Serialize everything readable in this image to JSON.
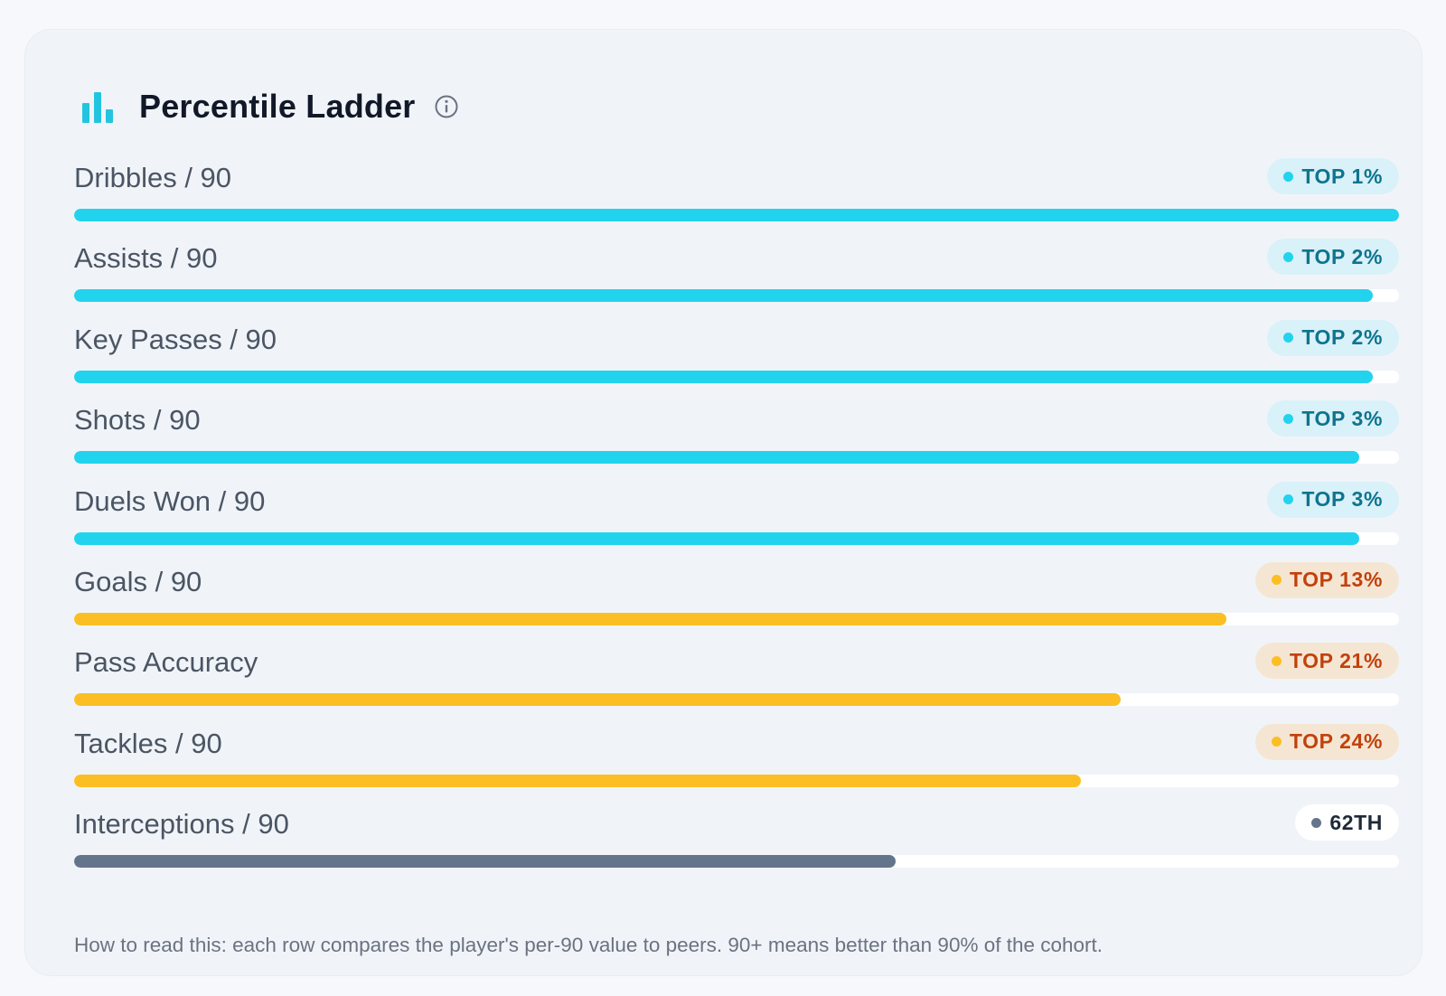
{
  "card": {
    "title": "Percentile Ladder",
    "footnote": "How to read this: each row compares the player's per-90 value to peers. 90+ means better than 90% of the cohort."
  },
  "colors": {
    "elite": "#22d3ee",
    "good": "#fbbf24",
    "average": "#64748b",
    "icon": "#22c5e0"
  },
  "icons": {
    "header": "bar-chart-icon",
    "info": "info-icon"
  },
  "rows": [
    {
      "label": "Dribbles / 90",
      "badge": "TOP 1%",
      "percentile": 100,
      "tier": "elite"
    },
    {
      "label": "Assists / 90",
      "badge": "TOP 2%",
      "percentile": 98,
      "tier": "elite"
    },
    {
      "label": "Key Passes / 90",
      "badge": "TOP 2%",
      "percentile": 98,
      "tier": "elite"
    },
    {
      "label": "Shots / 90",
      "badge": "TOP 3%",
      "percentile": 97,
      "tier": "elite"
    },
    {
      "label": "Duels Won / 90",
      "badge": "TOP 3%",
      "percentile": 97,
      "tier": "elite"
    },
    {
      "label": "Goals / 90",
      "badge": "TOP 13%",
      "percentile": 87,
      "tier": "good"
    },
    {
      "label": "Pass Accuracy",
      "badge": "TOP 21%",
      "percentile": 79,
      "tier": "good"
    },
    {
      "label": "Tackles / 90",
      "badge": "TOP 24%",
      "percentile": 76,
      "tier": "good"
    },
    {
      "label": "Interceptions / 90",
      "badge": "62TH",
      "percentile": 62,
      "tier": "avg"
    }
  ]
}
